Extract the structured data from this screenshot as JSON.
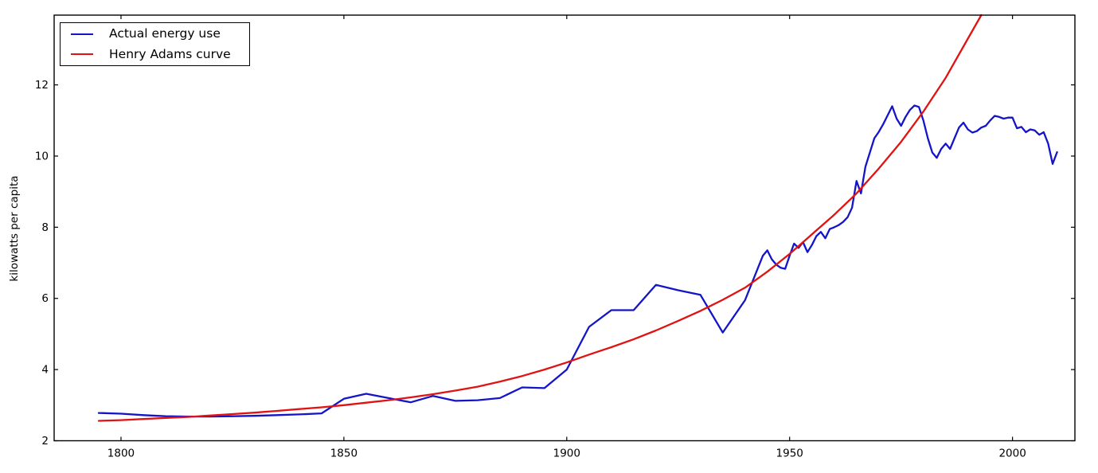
{
  "chart_data": {
    "type": "line",
    "title": "",
    "xlabel": "",
    "ylabel": "kilowatts per capita",
    "xlim": [
      1785,
      2014
    ],
    "ylim": [
      2,
      13.96
    ],
    "x_ticks": [
      1800,
      1850,
      1900,
      1950,
      2000
    ],
    "y_ticks": [
      2,
      4,
      6,
      8,
      10,
      12
    ],
    "grid": false,
    "legend_position": "upper left",
    "background": "#ffffff",
    "axis_color": "#000000",
    "series": [
      {
        "name": "Actual energy use",
        "color": "#1414c8",
        "points": [
          [
            1795,
            2.78
          ],
          [
            1800,
            2.76
          ],
          [
            1805,
            2.72
          ],
          [
            1810,
            2.69
          ],
          [
            1815,
            2.68
          ],
          [
            1820,
            2.68
          ],
          [
            1825,
            2.69
          ],
          [
            1830,
            2.7
          ],
          [
            1835,
            2.72
          ],
          [
            1840,
            2.74
          ],
          [
            1845,
            2.77
          ],
          [
            1850,
            3.18
          ],
          [
            1855,
            3.32
          ],
          [
            1860,
            3.2
          ],
          [
            1865,
            3.08
          ],
          [
            1870,
            3.26
          ],
          [
            1875,
            3.12
          ],
          [
            1880,
            3.14
          ],
          [
            1885,
            3.2
          ],
          [
            1890,
            3.5
          ],
          [
            1895,
            3.48
          ],
          [
            1900,
            4.0
          ],
          [
            1905,
            5.2
          ],
          [
            1910,
            5.67
          ],
          [
            1915,
            5.67
          ],
          [
            1920,
            6.38
          ],
          [
            1925,
            6.23
          ],
          [
            1930,
            6.1
          ],
          [
            1935,
            5.04
          ],
          [
            1940,
            5.95
          ],
          [
            1944,
            7.2
          ],
          [
            1945,
            7.35
          ],
          [
            1946,
            7.1
          ],
          [
            1947,
            6.95
          ],
          [
            1948,
            6.86
          ],
          [
            1949,
            6.83
          ],
          [
            1950,
            7.2
          ],
          [
            1951,
            7.54
          ],
          [
            1952,
            7.42
          ],
          [
            1953,
            7.58
          ],
          [
            1954,
            7.3
          ],
          [
            1955,
            7.5
          ],
          [
            1956,
            7.75
          ],
          [
            1957,
            7.87
          ],
          [
            1958,
            7.69
          ],
          [
            1959,
            7.95
          ],
          [
            1960,
            8.0
          ],
          [
            1961,
            8.06
          ],
          [
            1962,
            8.15
          ],
          [
            1963,
            8.28
          ],
          [
            1964,
            8.55
          ],
          [
            1965,
            9.3
          ],
          [
            1966,
            8.95
          ],
          [
            1967,
            9.7
          ],
          [
            1968,
            10.1
          ],
          [
            1969,
            10.5
          ],
          [
            1970,
            10.68
          ],
          [
            1971,
            10.9
          ],
          [
            1972,
            11.15
          ],
          [
            1973,
            11.4
          ],
          [
            1974,
            11.05
          ],
          [
            1975,
            10.85
          ],
          [
            1976,
            11.1
          ],
          [
            1977,
            11.3
          ],
          [
            1978,
            11.42
          ],
          [
            1979,
            11.38
          ],
          [
            1980,
            11.0
          ],
          [
            1981,
            10.5
          ],
          [
            1982,
            10.1
          ],
          [
            1983,
            9.95
          ],
          [
            1984,
            10.2
          ],
          [
            1985,
            10.35
          ],
          [
            1986,
            10.2
          ],
          [
            1987,
            10.5
          ],
          [
            1988,
            10.8
          ],
          [
            1989,
            10.94
          ],
          [
            1990,
            10.75
          ],
          [
            1991,
            10.66
          ],
          [
            1992,
            10.7
          ],
          [
            1993,
            10.8
          ],
          [
            1994,
            10.85
          ],
          [
            1995,
            11.0
          ],
          [
            1996,
            11.13
          ],
          [
            1997,
            11.1
          ],
          [
            1998,
            11.05
          ],
          [
            1999,
            11.08
          ],
          [
            2000,
            11.08
          ],
          [
            2001,
            10.78
          ],
          [
            2002,
            10.82
          ],
          [
            2003,
            10.67
          ],
          [
            2004,
            10.75
          ],
          [
            2005,
            10.72
          ],
          [
            2006,
            10.6
          ],
          [
            2007,
            10.67
          ],
          [
            2008,
            10.35
          ],
          [
            2009,
            9.78
          ],
          [
            2010,
            10.11
          ]
        ]
      },
      {
        "name": "Henry Adams curve",
        "color": "#e01212",
        "points": [
          [
            1795,
            2.56
          ],
          [
            1800,
            2.58
          ],
          [
            1805,
            2.61
          ],
          [
            1810,
            2.64
          ],
          [
            1815,
            2.67
          ],
          [
            1820,
            2.71
          ],
          [
            1825,
            2.75
          ],
          [
            1830,
            2.79
          ],
          [
            1835,
            2.84
          ],
          [
            1840,
            2.89
          ],
          [
            1845,
            2.94
          ],
          [
            1850,
            3.0
          ],
          [
            1855,
            3.07
          ],
          [
            1860,
            3.14
          ],
          [
            1865,
            3.22
          ],
          [
            1870,
            3.31
          ],
          [
            1875,
            3.41
          ],
          [
            1880,
            3.52
          ],
          [
            1885,
            3.66
          ],
          [
            1890,
            3.82
          ],
          [
            1895,
            4.0
          ],
          [
            1900,
            4.2
          ],
          [
            1905,
            4.42
          ],
          [
            1910,
            4.63
          ],
          [
            1915,
            4.85
          ],
          [
            1920,
            5.1
          ],
          [
            1925,
            5.37
          ],
          [
            1930,
            5.65
          ],
          [
            1935,
            5.96
          ],
          [
            1940,
            6.3
          ],
          [
            1945,
            6.75
          ],
          [
            1950,
            7.25
          ],
          [
            1955,
            7.8
          ],
          [
            1960,
            8.35
          ],
          [
            1965,
            8.95
          ],
          [
            1970,
            9.65
          ],
          [
            1975,
            10.4
          ],
          [
            1980,
            11.25
          ],
          [
            1985,
            12.2
          ],
          [
            1990,
            13.3
          ],
          [
            1993,
            13.96
          ]
        ]
      }
    ]
  },
  "legend": {
    "entries": [
      {
        "label": "Actual energy use"
      },
      {
        "label": "Henry Adams curve"
      }
    ]
  },
  "y_axis": {
    "label": "kilowatts per capita"
  }
}
